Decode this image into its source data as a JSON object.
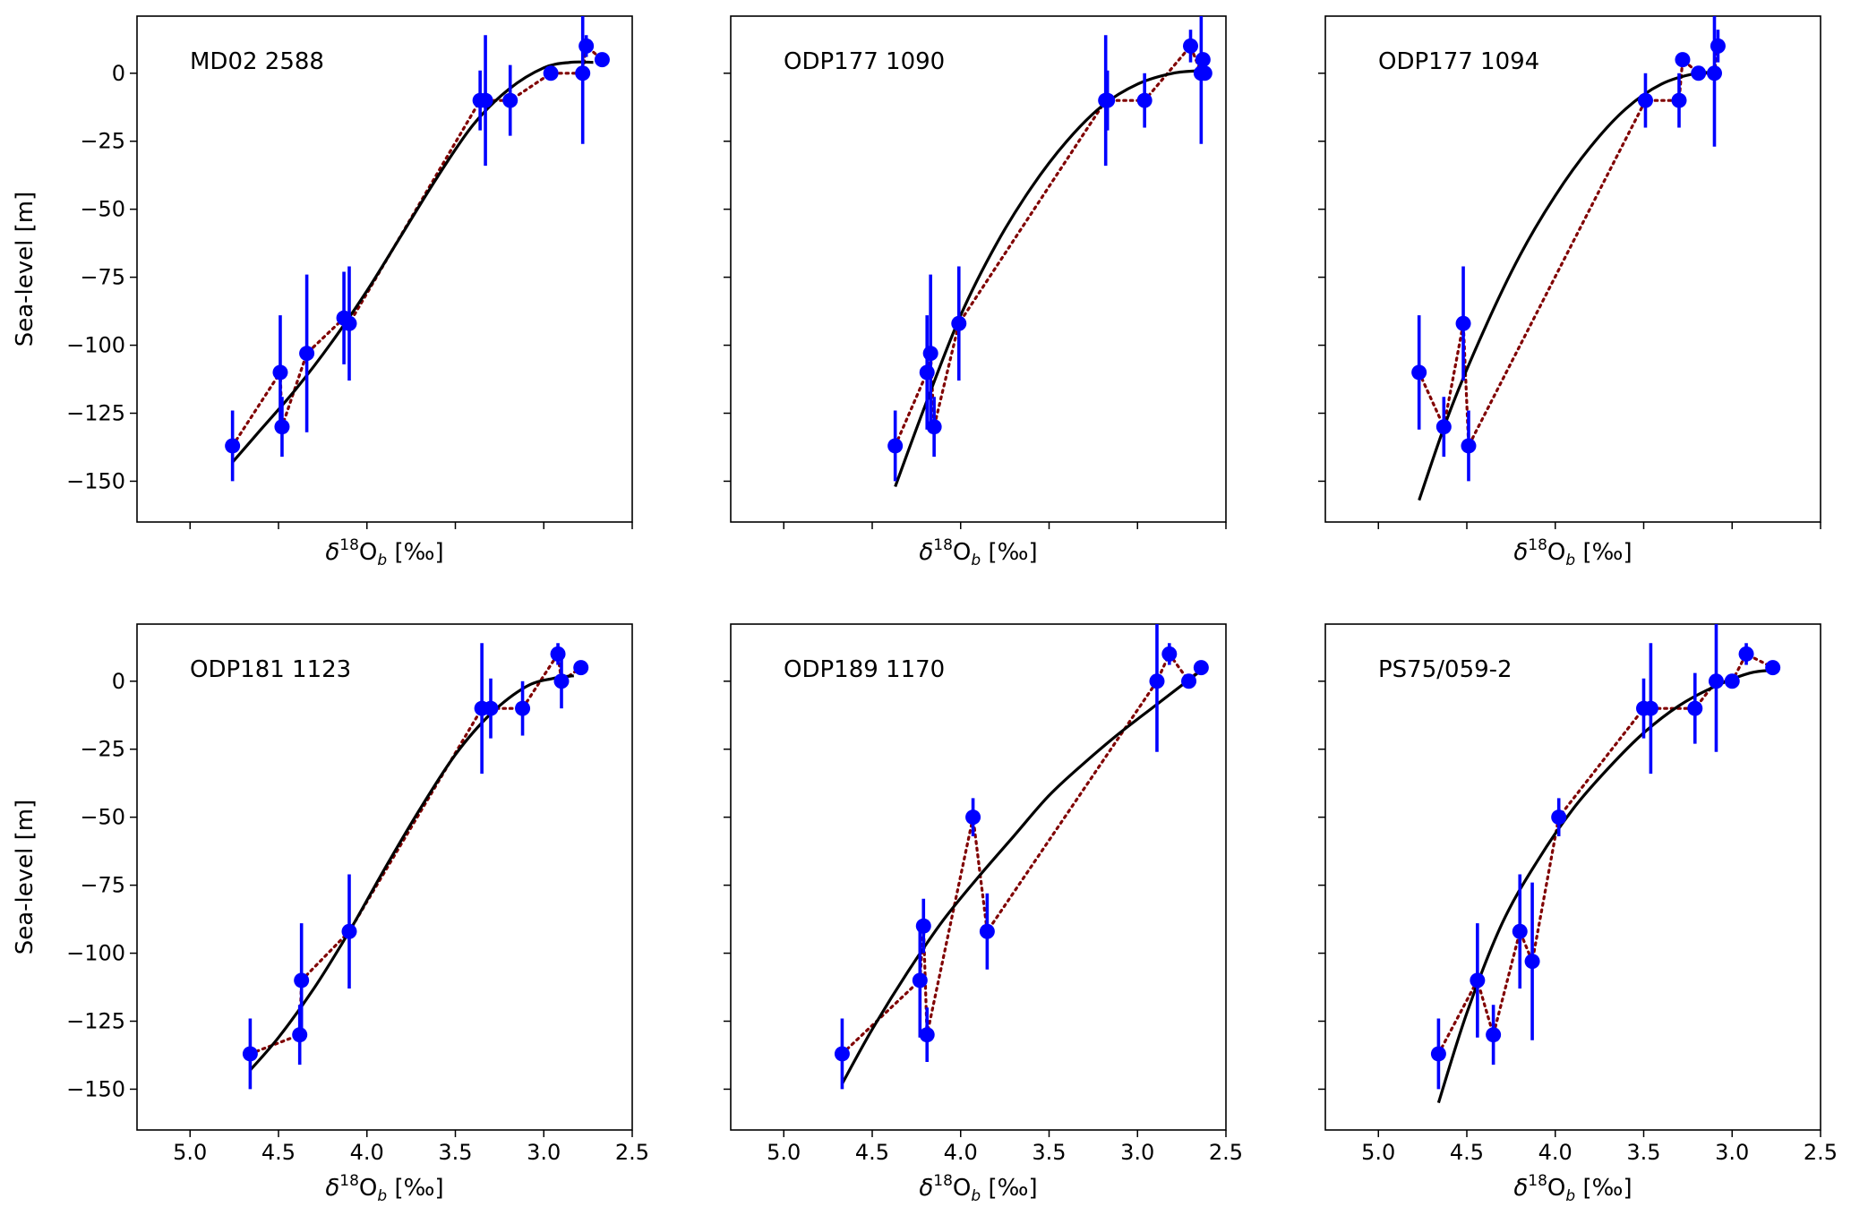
{
  "figure": {
    "x_axis_label": "δ18Ob [‰]",
    "x_label_delta": "δ",
    "x_label_sup": "18",
    "x_label_o": "O",
    "x_label_sub": "b",
    "x_label_tail": " [‰]",
    "y_axis_label": "Sea-level [m]",
    "colors": {
      "points": "#0000ff",
      "fit_line": "#000000",
      "dotted_line": "#800000"
    }
  },
  "chart_data": [
    {
      "type": "scatter",
      "title": "MD02 2588",
      "xlim": [
        5.3,
        2.5
      ],
      "ylim": [
        -165,
        21
      ],
      "x_ticks": [
        "5.0",
        "4.5",
        "4.0",
        "3.5",
        "3.0",
        "2.5"
      ],
      "x_tick_values": [
        5.0,
        4.5,
        4.0,
        3.5,
        3.0,
        2.5
      ],
      "show_x_tick_labels": false,
      "y_ticks": [
        "0",
        "−25",
        "−50",
        "−75",
        "−100",
        "−125",
        "−150"
      ],
      "y_tick_values": [
        0,
        -25,
        -50,
        -75,
        -100,
        -125,
        -150
      ],
      "show_y_tick_labels": true,
      "points": {
        "x": [
          4.76,
          4.49,
          4.48,
          4.34,
          4.13,
          4.1,
          3.36,
          3.33,
          3.19,
          2.96,
          2.78,
          2.76,
          2.67
        ],
        "y": [
          -137,
          -110,
          -130,
          -103,
          -90,
          -92,
          -10,
          -10,
          -10,
          0,
          0,
          10,
          5
        ],
        "err": [
          13,
          21,
          11,
          29,
          17,
          21,
          11,
          24,
          13,
          0,
          26,
          4,
          0
        ]
      },
      "fit_curve": {
        "x": [
          4.76,
          4.6,
          4.4,
          4.2,
          4.0,
          3.8,
          3.6,
          3.4,
          3.2,
          3.0,
          2.85,
          2.72
        ],
        "y": [
          -143,
          -131,
          -116,
          -99,
          -80,
          -59,
          -38,
          -19,
          -6,
          2,
          4,
          4
        ]
      }
    },
    {
      "type": "scatter",
      "title": "ODP177 1090",
      "xlim": [
        5.3,
        2.5
      ],
      "ylim": [
        -165,
        21
      ],
      "x_ticks": [
        "5.0",
        "4.5",
        "4.0",
        "3.5",
        "3.0",
        "2.5"
      ],
      "x_tick_values": [
        5.0,
        4.5,
        4.0,
        3.5,
        3.0,
        2.5
      ],
      "show_x_tick_labels": false,
      "y_ticks": [
        "0",
        "−25",
        "−50",
        "−75",
        "−100",
        "−125",
        "−150"
      ],
      "y_tick_values": [
        0,
        -25,
        -50,
        -75,
        -100,
        -125,
        -150
      ],
      "show_y_tick_labels": false,
      "points": {
        "x": [
          4.37,
          4.19,
          4.17,
          4.15,
          4.01,
          3.18,
          3.17,
          2.96,
          2.7,
          2.64,
          2.63,
          2.62
        ],
        "y": [
          -137,
          -110,
          -103,
          -130,
          -92,
          -10,
          -10,
          -10,
          10,
          0,
          5,
          0
        ],
        "err": [
          13,
          21,
          29,
          11,
          21,
          24,
          11,
          10,
          6,
          26,
          0,
          0
        ]
      },
      "fit_curve": {
        "x": [
          4.37,
          4.2,
          4.0,
          3.8,
          3.6,
          3.4,
          3.2,
          3.0,
          2.8,
          2.63
        ],
        "y": [
          -152,
          -122,
          -89,
          -63,
          -42,
          -25,
          -12,
          -4,
          0,
          1
        ]
      }
    },
    {
      "type": "scatter",
      "title": "ODP177 1094",
      "xlim": [
        5.3,
        2.5
      ],
      "ylim": [
        -165,
        21
      ],
      "x_ticks": [
        "5.0",
        "4.5",
        "4.0",
        "3.5",
        "3.0",
        "2.5"
      ],
      "x_tick_values": [
        5.0,
        4.5,
        4.0,
        3.5,
        3.0,
        2.5
      ],
      "show_x_tick_labels": false,
      "y_ticks": [
        "0",
        "−25",
        "−50",
        "−75",
        "−100",
        "−125",
        "−150"
      ],
      "y_tick_values": [
        0,
        -25,
        -50,
        -75,
        -100,
        -125,
        -150
      ],
      "show_y_tick_labels": false,
      "points": {
        "x": [
          4.77,
          4.63,
          4.52,
          4.49,
          3.49,
          3.3,
          3.28,
          3.19,
          3.1,
          3.08
        ],
        "y": [
          -110,
          -130,
          -92,
          -137,
          -10,
          -10,
          5,
          0,
          0,
          10
        ],
        "err": [
          21,
          11,
          21,
          13,
          10,
          10,
          0,
          0,
          27,
          6
        ]
      },
      "fit_curve": {
        "x": [
          4.77,
          4.6,
          4.4,
          4.2,
          4.0,
          3.8,
          3.6,
          3.4,
          3.2,
          3.08
        ],
        "y": [
          -157,
          -125,
          -94,
          -67,
          -45,
          -27,
          -13,
          -4,
          0,
          0
        ]
      }
    },
    {
      "type": "scatter",
      "title": "ODP181 1123",
      "xlim": [
        5.3,
        2.5
      ],
      "ylim": [
        -165,
        21
      ],
      "x_ticks": [
        "5.0",
        "4.5",
        "4.0",
        "3.5",
        "3.0",
        "2.5"
      ],
      "x_tick_values": [
        5.0,
        4.5,
        4.0,
        3.5,
        3.0,
        2.5
      ],
      "show_x_tick_labels": true,
      "y_ticks": [
        "0",
        "−25",
        "−50",
        "−75",
        "−100",
        "−125",
        "−150"
      ],
      "y_tick_values": [
        0,
        -25,
        -50,
        -75,
        -100,
        -125,
        -150
      ],
      "show_y_tick_labels": true,
      "points": {
        "x": [
          4.66,
          4.38,
          4.37,
          4.1,
          3.35,
          3.3,
          3.12,
          2.92,
          2.9,
          2.79
        ],
        "y": [
          -137,
          -130,
          -110,
          -92,
          -10,
          -10,
          -10,
          10,
          0,
          5
        ],
        "err": [
          13,
          11,
          21,
          21,
          24,
          11,
          10,
          4,
          10,
          0
        ]
      },
      "fit_curve": {
        "x": [
          4.66,
          4.5,
          4.3,
          4.1,
          3.9,
          3.7,
          3.5,
          3.3,
          3.1,
          2.95,
          2.83
        ],
        "y": [
          -143,
          -131,
          -113,
          -92,
          -69,
          -47,
          -27,
          -12,
          -2,
          1,
          2
        ]
      }
    },
    {
      "type": "scatter",
      "title": "ODP189 1170",
      "xlim": [
        5.3,
        2.5
      ],
      "ylim": [
        -165,
        21
      ],
      "x_ticks": [
        "5.0",
        "4.5",
        "4.0",
        "3.5",
        "3.0",
        "2.5"
      ],
      "x_tick_values": [
        5.0,
        4.5,
        4.0,
        3.5,
        3.0,
        2.5
      ],
      "show_x_tick_labels": true,
      "y_ticks": [
        "0",
        "−25",
        "−50",
        "−75",
        "−100",
        "−125",
        "−150"
      ],
      "y_tick_values": [
        0,
        -25,
        -50,
        -75,
        -100,
        -125,
        -150
      ],
      "show_y_tick_labels": false,
      "points": {
        "x": [
          4.67,
          4.23,
          4.21,
          4.19,
          3.93,
          3.85,
          2.89,
          2.82,
          2.71,
          2.64
        ],
        "y": [
          -137,
          -110,
          -90,
          -130,
          -50,
          -92,
          0,
          10,
          0,
          5
        ],
        "err": [
          13,
          21,
          10,
          10,
          7,
          14,
          26,
          4,
          0,
          0
        ]
      },
      "fit_curve": {
        "x": [
          4.67,
          4.5,
          4.3,
          4.1,
          3.9,
          3.7,
          3.5,
          3.3,
          3.1,
          2.9,
          2.7,
          2.64
        ],
        "y": [
          -148,
          -128,
          -107,
          -88,
          -72,
          -57,
          -42,
          -30,
          -19,
          -9,
          1,
          4
        ]
      }
    },
    {
      "type": "scatter",
      "title": "PS75/059-2",
      "xlim": [
        5.3,
        2.5
      ],
      "ylim": [
        -165,
        21
      ],
      "x_ticks": [
        "5.0",
        "4.5",
        "4.0",
        "3.5",
        "3.0",
        "2.5"
      ],
      "x_tick_values": [
        5.0,
        4.5,
        4.0,
        3.5,
        3.0,
        2.5
      ],
      "show_x_tick_labels": true,
      "y_ticks": [
        "0",
        "−25",
        "−50",
        "−75",
        "−100",
        "−125",
        "−150"
      ],
      "y_tick_values": [
        0,
        -25,
        -50,
        -75,
        -100,
        -125,
        -150
      ],
      "show_y_tick_labels": false,
      "points": {
        "x": [
          4.66,
          4.44,
          4.35,
          4.2,
          4.13,
          3.98,
          3.5,
          3.46,
          3.21,
          3.09,
          3.0,
          2.92,
          2.77
        ],
        "y": [
          -137,
          -110,
          -130,
          -92,
          -103,
          -50,
          -10,
          -10,
          -10,
          0,
          0,
          10,
          5
        ],
        "err": [
          13,
          21,
          11,
          21,
          29,
          7,
          11,
          24,
          13,
          26,
          0,
          4,
          0
        ]
      },
      "fit_curve": {
        "x": [
          4.66,
          4.5,
          4.3,
          4.1,
          3.9,
          3.7,
          3.5,
          3.3,
          3.1,
          2.9,
          2.77
        ],
        "y": [
          -155,
          -122,
          -89,
          -66,
          -47,
          -32,
          -19,
          -9,
          -2,
          3,
          4
        ]
      }
    }
  ]
}
